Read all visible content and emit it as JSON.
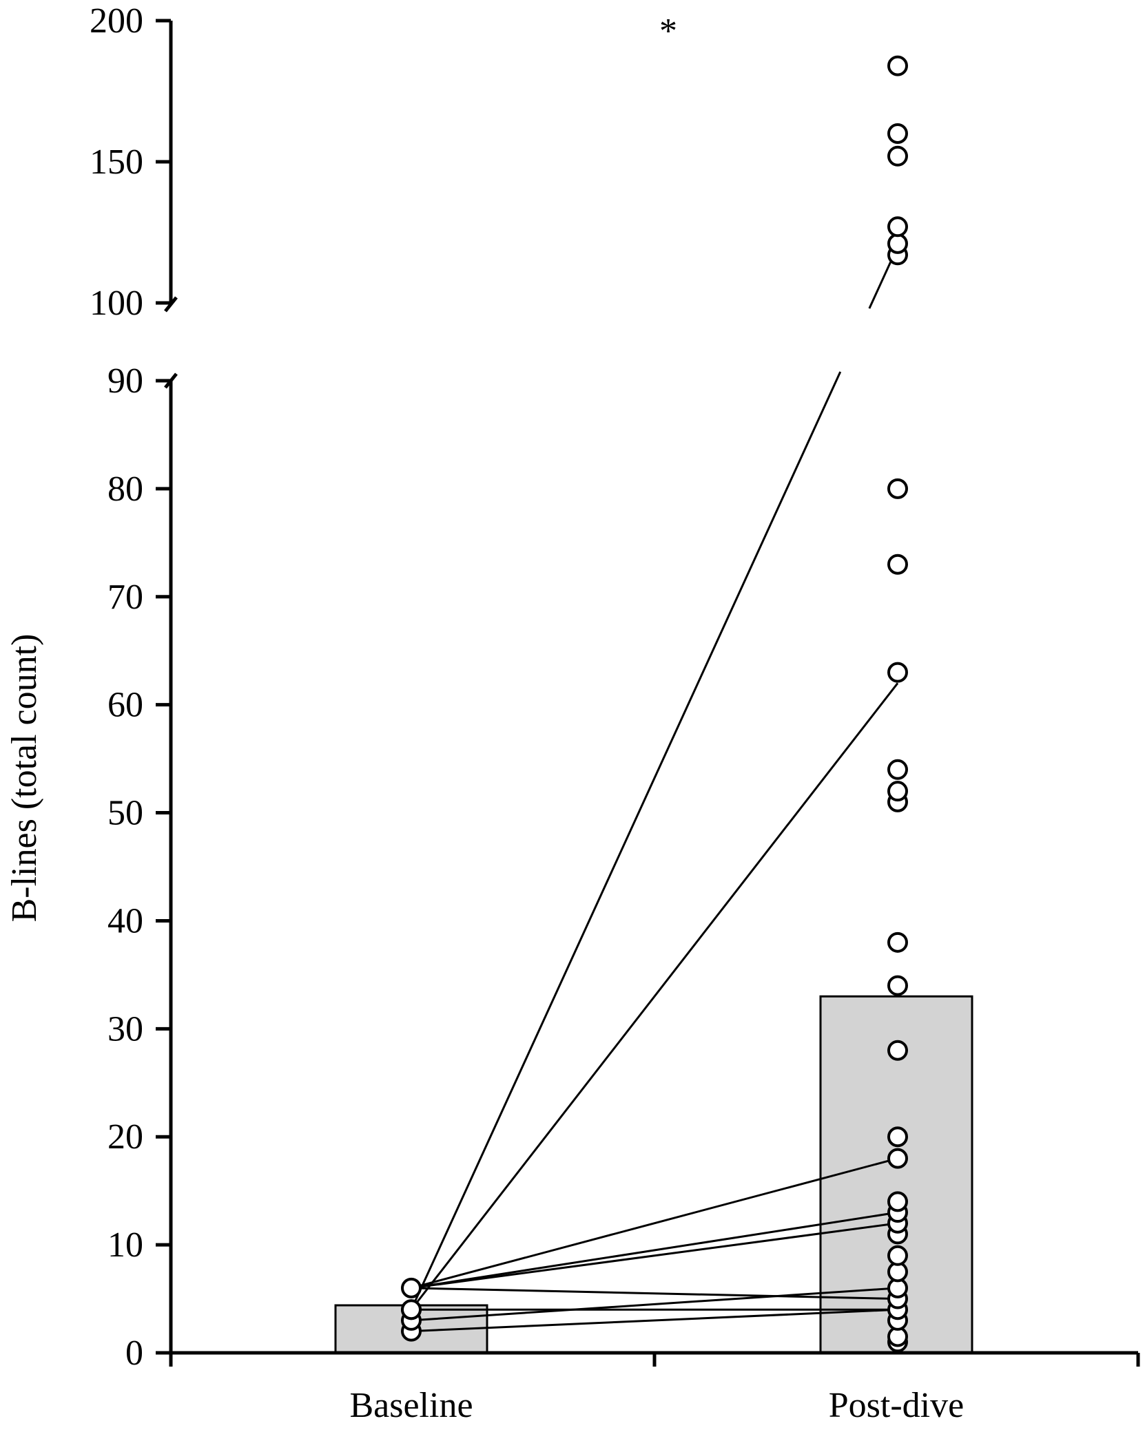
{
  "chart_data": {
    "type": "bar",
    "ylabel": "B-lines (total count)",
    "categories": [
      "Baseline",
      "Post-dive"
    ],
    "values": [
      4.4,
      33
    ],
    "significance_marker": "*",
    "y_axis": {
      "broken": true,
      "lower_range": [
        0,
        90
      ],
      "upper_range": [
        100,
        200
      ],
      "lower_ticks": [
        0,
        10,
        20,
        30,
        40,
        50,
        60,
        70,
        80,
        90
      ],
      "upper_ticks": [
        100,
        150,
        200
      ]
    },
    "baseline_points": [
      2,
      3,
      4,
      4,
      6
    ],
    "postdive_points": [
      1,
      1.5,
      3,
      4,
      5,
      6,
      7.5,
      9,
      11,
      12,
      13,
      14,
      18,
      20,
      28,
      34,
      38,
      51,
      52,
      54,
      63,
      73,
      80,
      117,
      121,
      127,
      152,
      160,
      184
    ],
    "paired_lines": [
      {
        "baseline": 4,
        "postdive": 120
      },
      {
        "baseline": 4,
        "postdive": 62
      },
      {
        "baseline": 6,
        "postdive": 18
      },
      {
        "baseline": 6,
        "postdive": 13
      },
      {
        "baseline": 6,
        "postdive": 12
      },
      {
        "baseline": 6,
        "postdive": 5
      },
      {
        "baseline": 4,
        "postdive": 4
      },
      {
        "baseline": 3,
        "postdive": 6
      },
      {
        "baseline": 2,
        "postdive": 4
      }
    ],
    "grid": false,
    "bar_color": "#d3d3d3",
    "marker_fill": "#ffffff",
    "line_color": "#000000"
  }
}
